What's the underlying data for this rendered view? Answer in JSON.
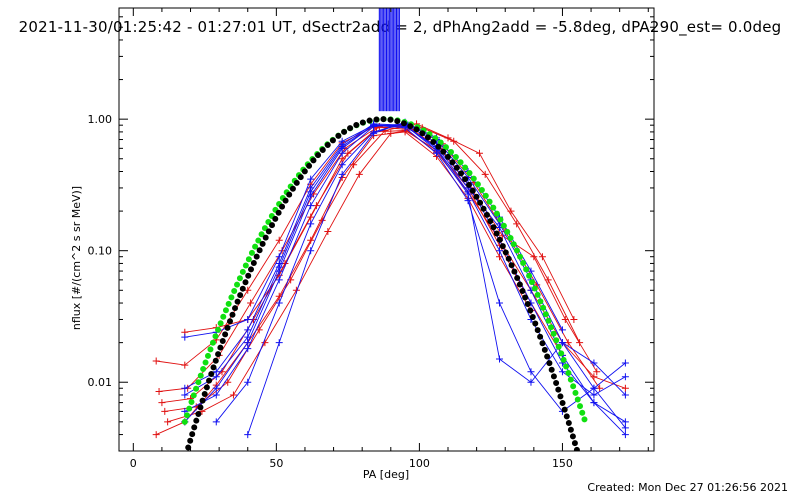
{
  "header": {
    "title": "2021-11-30/01:25:42 - 01:27:01 UT, dSectr2add = 2, dPhAng2add = -5.8deg, dPA290_est=  0.0deg"
  },
  "footer": {
    "created": "Created: Mon Dec 27 01:26:56 2021"
  },
  "chart_data": {
    "type": "line",
    "title": "2021-11-30/01:25:42 - 01:27:01 UT, dSectr2add = 2, dPhAng2add = -5.8deg, dPA290_est=  0.0deg",
    "xlabel": "PA [deg]",
    "ylabel": "nflux [#/(cm^2 s sr MeV)]",
    "xlim": [
      -5,
      182
    ],
    "ylim": [
      0.003,
      7
    ],
    "yscale": "log",
    "grid": false,
    "x_ticks": [
      0,
      50,
      100,
      150
    ],
    "x_tick_labels": [
      "0",
      "50",
      "100",
      "150"
    ],
    "y_ticks": [
      0.01,
      0.1,
      1.0
    ],
    "y_tick_labels": [
      "0.01",
      "0.10",
      "1.00"
    ],
    "colors": {
      "red": "#e01010",
      "blue": "#1010f0",
      "green": "#10e010",
      "black": "#000000"
    },
    "fit_curves": [
      {
        "color": "green",
        "center": 88,
        "width": 21.5,
        "peak": 1.0
      },
      {
        "color": "black",
        "center": 87,
        "width": 20.0,
        "peak": 1.0
      }
    ],
    "vertical_band": {
      "color": "blue",
      "x_range": [
        86,
        93
      ],
      "y_range": [
        1.15,
        7
      ]
    },
    "series": [
      {
        "color": "red",
        "x": [
          8,
          18,
          29,
          40,
          51,
          62,
          73,
          84,
          95,
          106,
          117,
          128,
          139,
          150,
          161,
          172
        ],
        "y": [
          0.0145,
          0.0135,
          0.021,
          0.05,
          0.12,
          0.32,
          0.66,
          0.87,
          0.84,
          0.56,
          0.28,
          0.12,
          0.05,
          0.02,
          0.011,
          0.009
        ]
      },
      {
        "color": "red",
        "x": [
          10,
          20,
          31,
          42,
          53,
          64,
          75,
          86,
          97,
          108,
          119,
          130,
          141,
          152,
          163
        ],
        "y": [
          0.007,
          0.0075,
          0.012,
          0.03,
          0.08,
          0.22,
          0.55,
          0.88,
          0.9,
          0.65,
          0.33,
          0.14,
          0.055,
          0.02,
          0.009
        ]
      },
      {
        "color": "red",
        "x": [
          11,
          22,
          33,
          44,
          55,
          66,
          77,
          88,
          99,
          110,
          121,
          132,
          143,
          154
        ],
        "y": [
          0.006,
          0.0065,
          0.01,
          0.025,
          0.06,
          0.17,
          0.45,
          0.82,
          0.92,
          0.72,
          0.55,
          0.2,
          0.09,
          0.03
        ]
      },
      {
        "color": "red",
        "x": [
          9,
          19,
          30,
          41,
          52,
          63,
          74,
          85,
          96,
          107,
          118,
          129,
          140,
          151,
          162
        ],
        "y": [
          0.0085,
          0.009,
          0.016,
          0.04,
          0.1,
          0.27,
          0.6,
          0.86,
          0.88,
          0.6,
          0.3,
          0.13,
          0.09,
          0.03,
          0.012
        ]
      },
      {
        "color": "red",
        "x": [
          12,
          24,
          35,
          46,
          57,
          68,
          79,
          90,
          101,
          112,
          123,
          134,
          145,
          156
        ],
        "y": [
          0.005,
          0.006,
          0.008,
          0.02,
          0.05,
          0.14,
          0.38,
          0.78,
          0.86,
          0.68,
          0.38,
          0.16,
          0.06,
          0.02
        ]
      },
      {
        "color": "red",
        "x": [
          8,
          18,
          29,
          40,
          51,
          62,
          73,
          84,
          95,
          106,
          117,
          128,
          139
        ],
        "y": [
          0.004,
          0.005,
          0.0095,
          0.02,
          0.045,
          0.12,
          0.36,
          0.75,
          0.8,
          0.52,
          0.25,
          0.09,
          0.035
        ]
      },
      {
        "color": "red",
        "x": [
          18,
          29,
          40,
          51,
          62,
          73,
          84,
          95,
          106,
          117,
          128,
          139,
          150
        ],
        "y": [
          0.024,
          0.026,
          0.03,
          0.065,
          0.18,
          0.5,
          0.8,
          0.82,
          0.58,
          0.3,
          0.11,
          0.04,
          0.016
        ]
      },
      {
        "color": "blue",
        "x": [
          18,
          29,
          40,
          51,
          62,
          73,
          84,
          95,
          106,
          117,
          128,
          139,
          150,
          161,
          172
        ],
        "y": [
          0.022,
          0.024,
          0.03,
          0.09,
          0.35,
          0.68,
          0.9,
          0.86,
          0.55,
          0.24,
          0.04,
          0.012,
          0.006,
          0.009,
          0.014
        ]
      },
      {
        "color": "blue",
        "x": [
          18,
          29,
          40,
          51,
          62,
          73,
          84,
          95,
          106,
          117,
          128,
          139,
          150,
          161,
          172
        ],
        "y": [
          0.009,
          0.012,
          0.025,
          0.08,
          0.3,
          0.64,
          0.92,
          0.9,
          0.6,
          0.28,
          0.1,
          0.03,
          0.012,
          0.008,
          0.011
        ]
      },
      {
        "color": "blue",
        "x": [
          18,
          29,
          40,
          51,
          62,
          73,
          84,
          95,
          106,
          117,
          128,
          139,
          150,
          161,
          172
        ],
        "y": [
          0.006,
          0.008,
          0.018,
          0.06,
          0.22,
          0.55,
          0.88,
          0.92,
          0.66,
          0.32,
          0.12,
          0.04,
          0.014,
          0.007,
          0.005
        ]
      },
      {
        "color": "blue",
        "x": [
          18,
          29,
          40,
          51,
          62,
          73,
          84,
          95,
          106,
          117,
          128,
          139,
          150,
          161,
          172
        ],
        "y": [
          0.005,
          0.009,
          0.02,
          0.07,
          0.26,
          0.6,
          0.9,
          0.88,
          0.62,
          0.3,
          0.15,
          0.05,
          0.016,
          0.007,
          0.004
        ]
      },
      {
        "color": "blue",
        "x": [
          29,
          40,
          51,
          62,
          73,
          84,
          95,
          106,
          117,
          128,
          139,
          150,
          161,
          172
        ],
        "y": [
          0.005,
          0.01,
          0.04,
          0.16,
          0.45,
          0.8,
          0.93,
          0.7,
          0.36,
          0.16,
          0.06,
          0.02,
          0.009,
          0.0045
        ]
      },
      {
        "color": "blue",
        "x": [
          18,
          29,
          40,
          51,
          62,
          73,
          84,
          95,
          106,
          117,
          128,
          139,
          150,
          161,
          172
        ],
        "y": [
          0.008,
          0.011,
          0.022,
          0.075,
          0.28,
          0.62,
          0.9,
          0.9,
          0.58,
          0.27,
          0.015,
          0.01,
          0.02,
          0.014,
          0.008
        ]
      },
      {
        "color": "blue",
        "x": [
          40,
          51,
          62,
          73,
          84,
          95,
          106,
          117,
          128,
          139,
          150
        ],
        "y": [
          0.004,
          0.02,
          0.1,
          0.38,
          0.78,
          0.95,
          0.72,
          0.4,
          0.18,
          0.07,
          0.025
        ]
      }
    ]
  }
}
